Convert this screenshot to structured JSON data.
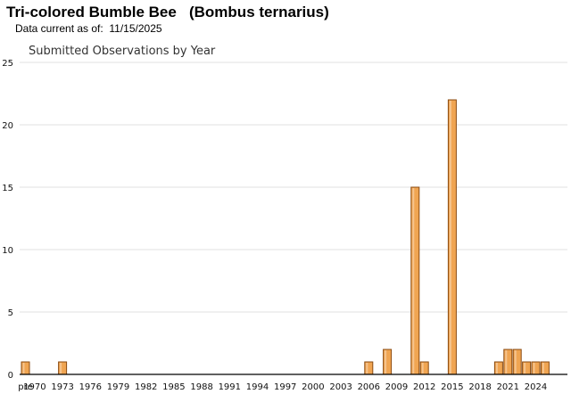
{
  "header": {
    "title": "Tri-colored Bumble Bee   (Bombus ternarius)",
    "subtitle": "Data current as of:  11/15/2025"
  },
  "colors": {
    "bar_fill": "#f0a552",
    "bar_stroke": "#8a4a10",
    "grid": "#e2e2e2",
    "axis": "#000000"
  },
  "chart_data": {
    "type": "bar",
    "title": "Submitted Observations by Year",
    "xlabel": "",
    "ylabel": "",
    "ylim": [
      0,
      25
    ],
    "y_ticks": [
      0,
      5,
      10,
      15,
      20,
      25
    ],
    "grid": true,
    "categories": [
      "pre",
      "1970",
      "1971",
      "1972",
      "1973",
      "1974",
      "1975",
      "1976",
      "1977",
      "1978",
      "1979",
      "1980",
      "1981",
      "1982",
      "1983",
      "1984",
      "1985",
      "1986",
      "1987",
      "1988",
      "1989",
      "1990",
      "1991",
      "1992",
      "1993",
      "1994",
      "1995",
      "1996",
      "1997",
      "1998",
      "1999",
      "2000",
      "2001",
      "2002",
      "2003",
      "2004",
      "2005",
      "2006",
      "2007",
      "2008",
      "2009",
      "2010",
      "2011",
      "2012",
      "2013",
      "2014",
      "2015",
      "2016",
      "2017",
      "2018",
      "2019",
      "2020",
      "2021",
      "2022",
      "2023",
      "2024",
      "2025"
    ],
    "x_tick_labels": [
      "pre",
      "1970",
      "1973",
      "1976",
      "1979",
      "1982",
      "1985",
      "1988",
      "1991",
      "1994",
      "1997",
      "2000",
      "2003",
      "2006",
      "2009",
      "2012",
      "2015",
      "2018",
      "2021",
      "2024"
    ],
    "values": [
      1,
      0,
      0,
      0,
      1,
      0,
      0,
      0,
      0,
      0,
      0,
      0,
      0,
      0,
      0,
      0,
      0,
      0,
      0,
      0,
      0,
      0,
      0,
      0,
      0,
      0,
      0,
      0,
      0,
      0,
      0,
      0,
      0,
      0,
      0,
      0,
      0,
      1,
      0,
      2,
      0,
      0,
      15,
      1,
      0,
      0,
      22,
      0,
      0,
      0,
      0,
      1,
      2,
      2,
      1,
      1,
      1
    ]
  }
}
